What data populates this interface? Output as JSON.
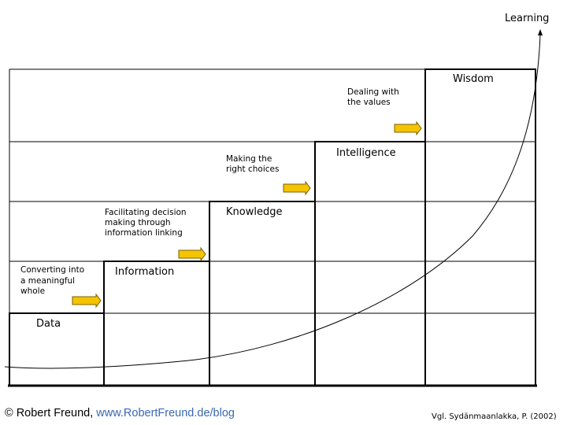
{
  "axis": {
    "label": "Learning"
  },
  "stages": [
    {
      "name": "Data",
      "description": [
        "Converting into",
        "a meaningful",
        "whole"
      ]
    },
    {
      "name": "Information",
      "description": [
        "Facilitating decision",
        "making through",
        "information linking"
      ]
    },
    {
      "name": "Knowledge",
      "description": [
        "Making the",
        "right choices"
      ]
    },
    {
      "name": "Intelligence",
      "description": []
    },
    {
      "name": "Wisdom",
      "description": [
        "Dealing with",
        "the values"
      ]
    }
  ],
  "stage_descriptions_between": {
    "intelligence_lead": [
      "Making the",
      "right choices"
    ],
    "wisdom_lead": [
      "Dealing with",
      "the values"
    ]
  },
  "colors": {
    "arrow_fill": "#f5c400",
    "arrow_stroke": "#7a6200",
    "link": "#3a68b3"
  },
  "footer": {
    "copyright_prefix": "© Robert Freund, ",
    "link_text": "www.RobertFreund.de/blog",
    "citation": "Vgl. Sydänmaanlakka, P. (2002)"
  }
}
